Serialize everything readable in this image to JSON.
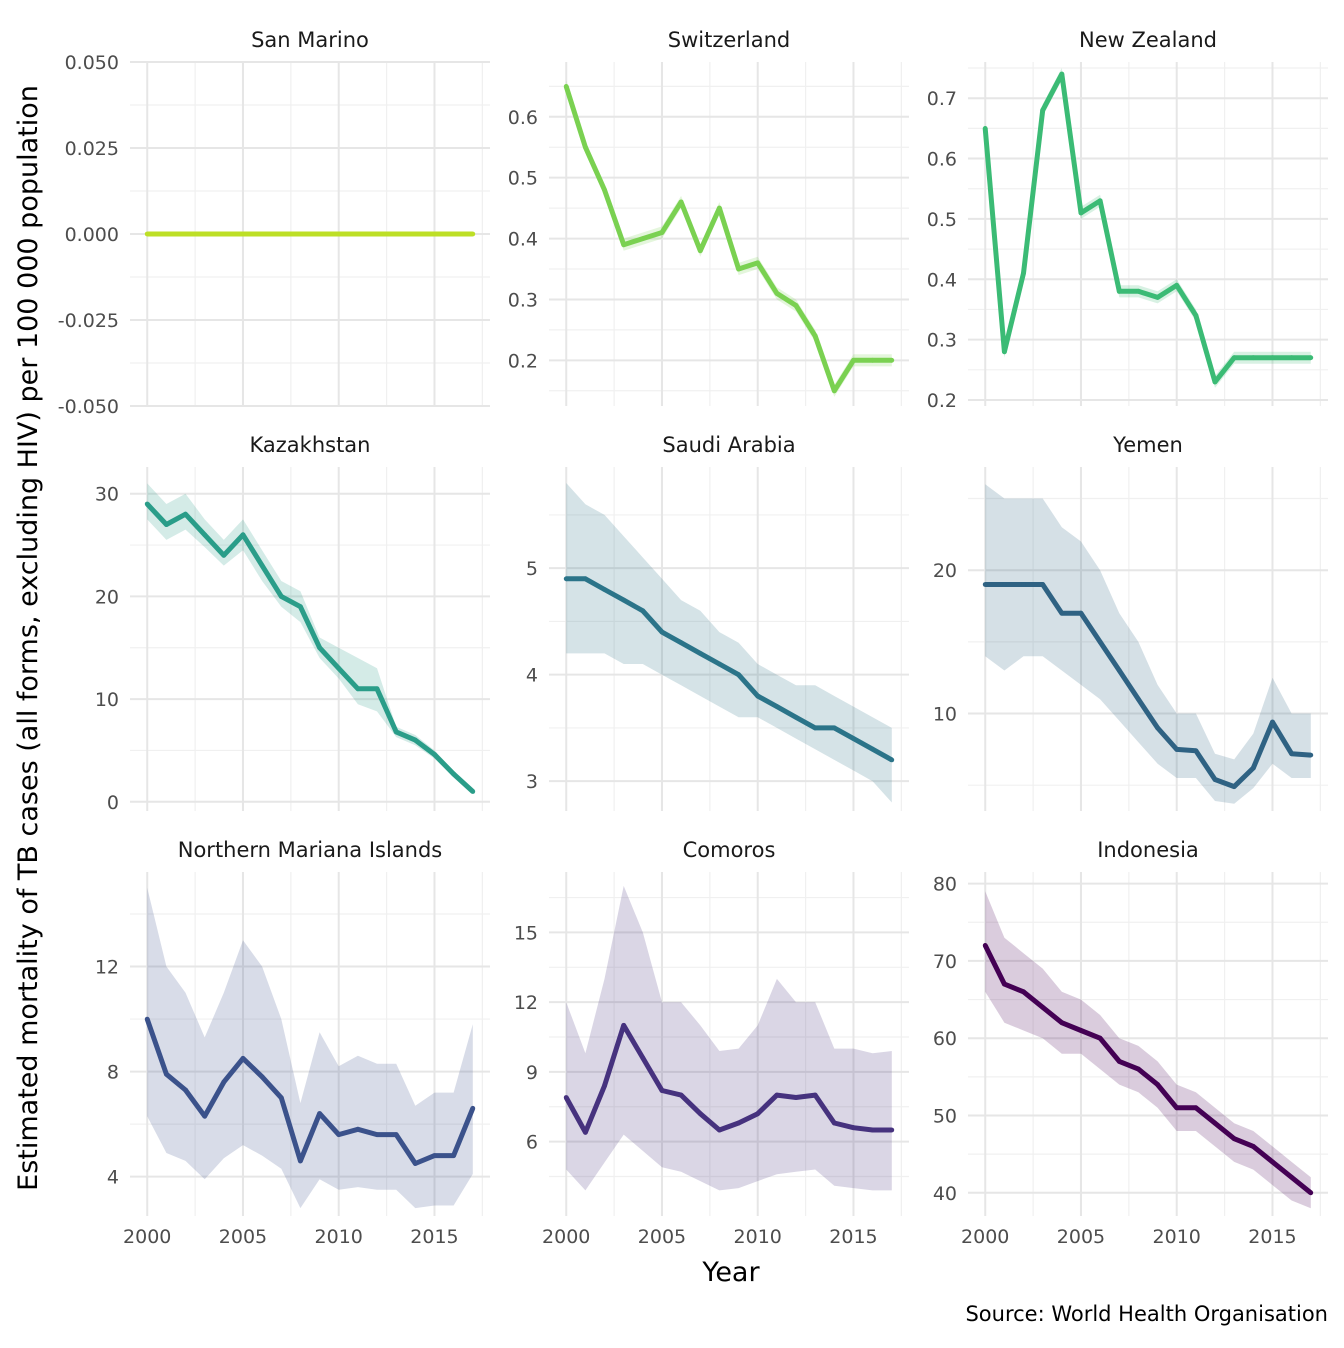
{
  "chart_data": {
    "type": "line",
    "layout": "3x3 small multiples, free y scales, shaded uncertainty band around each line",
    "xlabel": "Year",
    "ylabel": "Estimated mortality of TB cases (all forms, excluding HIV) per 100 000 population",
    "caption": "Source: World Health Organisation",
    "x_ticks": [
      "2000",
      "2005",
      "2010",
      "2015"
    ],
    "x": [
      2000,
      2001,
      2002,
      2003,
      2004,
      2005,
      2006,
      2007,
      2008,
      2009,
      2010,
      2011,
      2012,
      2013,
      2014,
      2015,
      2016,
      2017
    ],
    "xlim": [
      1999.1,
      2017.9
    ],
    "grid": true,
    "legend": "none",
    "panels": [
      {
        "name": "San Marino",
        "color": "#bddf26",
        "ylim": [
          -0.05,
          0.05
        ],
        "y_ticks": [
          -0.05,
          -0.025,
          0,
          0.025,
          0.05
        ],
        "y_tick_labels": [
          "-0.050",
          "-0.025",
          "0.000",
          "0.025",
          "0.050"
        ],
        "values": [
          0,
          0,
          0,
          0,
          0,
          0,
          0,
          0,
          0,
          0,
          0,
          0,
          0,
          0,
          0,
          0,
          0,
          0
        ],
        "lower": [
          0,
          0,
          0,
          0,
          0,
          0,
          0,
          0,
          0,
          0,
          0,
          0,
          0,
          0,
          0,
          0,
          0,
          0
        ],
        "upper": [
          0,
          0,
          0,
          0,
          0,
          0,
          0,
          0,
          0,
          0,
          0,
          0,
          0,
          0,
          0,
          0,
          0,
          0
        ]
      },
      {
        "name": "Switzerland",
        "color": "#7ad151",
        "ylim": [
          0.125,
          0.69
        ],
        "y_ticks": [
          0.2,
          0.3,
          0.4,
          0.5,
          0.6
        ],
        "y_tick_labels": [
          "0.2",
          "0.3",
          "0.4",
          "0.5",
          "0.6"
        ],
        "values": [
          0.65,
          0.55,
          0.48,
          0.39,
          0.4,
          0.41,
          0.46,
          0.38,
          0.45,
          0.35,
          0.36,
          0.31,
          0.29,
          0.24,
          0.15,
          0.2,
          0.2,
          0.2
        ],
        "lower": [
          0.64,
          0.54,
          0.47,
          0.38,
          0.39,
          0.4,
          0.45,
          0.37,
          0.44,
          0.34,
          0.35,
          0.3,
          0.28,
          0.23,
          0.14,
          0.19,
          0.19,
          0.19
        ],
        "upper": [
          0.66,
          0.56,
          0.49,
          0.4,
          0.41,
          0.42,
          0.47,
          0.39,
          0.46,
          0.36,
          0.37,
          0.32,
          0.3,
          0.25,
          0.16,
          0.21,
          0.21,
          0.21
        ]
      },
      {
        "name": "New Zealand",
        "color": "#3bbb75",
        "ylim": [
          0.19,
          0.76
        ],
        "y_ticks": [
          0.2,
          0.3,
          0.4,
          0.5,
          0.6,
          0.7
        ],
        "y_tick_labels": [
          "0.2",
          "0.3",
          "0.4",
          "0.5",
          "0.6",
          "0.7"
        ],
        "values": [
          0.65,
          0.28,
          0.41,
          0.68,
          0.74,
          0.51,
          0.53,
          0.38,
          0.38,
          0.37,
          0.39,
          0.34,
          0.23,
          0.27,
          0.27,
          0.27,
          0.27,
          0.27
        ],
        "lower": [
          0.64,
          0.27,
          0.4,
          0.67,
          0.73,
          0.5,
          0.52,
          0.37,
          0.37,
          0.36,
          0.38,
          0.33,
          0.22,
          0.26,
          0.26,
          0.26,
          0.26,
          0.26
        ],
        "upper": [
          0.66,
          0.29,
          0.42,
          0.69,
          0.75,
          0.52,
          0.54,
          0.39,
          0.39,
          0.38,
          0.4,
          0.35,
          0.24,
          0.28,
          0.28,
          0.28,
          0.28,
          0.28
        ]
      },
      {
        "name": "Kazakhstan",
        "color": "#2a9d89",
        "ylim": [
          -0.9,
          32.6
        ],
        "y_ticks": [
          0,
          10,
          20,
          30
        ],
        "y_tick_labels": [
          "0",
          "10",
          "20",
          "30"
        ],
        "values": [
          29,
          27,
          28,
          26,
          24,
          26,
          23,
          20,
          19,
          15,
          13,
          11,
          11,
          6.8,
          6,
          4.6,
          2.7,
          1.0
        ],
        "lower": [
          27.5,
          25.5,
          26.5,
          24.8,
          23,
          24.5,
          21.5,
          19,
          17.5,
          14,
          12,
          9.5,
          8.8,
          6.3,
          5.5,
          4.2,
          2.4,
          0.8
        ],
        "upper": [
          31,
          29,
          30,
          27.5,
          25.5,
          27.5,
          24.5,
          21.5,
          20.5,
          16,
          15,
          14,
          13,
          7.3,
          6.5,
          5.0,
          3.0,
          1.2
        ],
        "cap_lower": -0.9
      },
      {
        "name": "Saudi Arabia",
        "color": "#2b7489",
        "ylim": [
          2.72,
          5.95
        ],
        "y_ticks": [
          3,
          4,
          5
        ],
        "y_tick_labels": [
          "3",
          "4",
          "5"
        ],
        "values": [
          4.9,
          4.9,
          4.8,
          4.7,
          4.6,
          4.4,
          4.3,
          4.2,
          4.1,
          4.0,
          3.8,
          3.7,
          3.6,
          3.5,
          3.5,
          3.4,
          3.3,
          3.2
        ],
        "lower": [
          4.2,
          4.2,
          4.2,
          4.1,
          4.1,
          4.0,
          3.9,
          3.8,
          3.7,
          3.6,
          3.6,
          3.5,
          3.4,
          3.3,
          3.2,
          3.1,
          3.0,
          2.8
        ],
        "upper": [
          5.8,
          5.6,
          5.5,
          5.3,
          5.1,
          4.9,
          4.7,
          4.6,
          4.4,
          4.3,
          4.1,
          4.0,
          3.9,
          3.9,
          3.8,
          3.7,
          3.6,
          3.5
        ]
      },
      {
        "name": "Yemen",
        "color": "#2f6283",
        "ylim": [
          3.2,
          27.2
        ],
        "y_ticks": [
          10,
          20
        ],
        "y_tick_labels": [
          "10",
          "20"
        ],
        "values": [
          19,
          19,
          19,
          19,
          17,
          17,
          15,
          13,
          11,
          9,
          7.5,
          7.4,
          5.4,
          4.9,
          6.2,
          9.4,
          7.2,
          7.1
        ],
        "lower": [
          14,
          13,
          14,
          14,
          13,
          12,
          11,
          9.5,
          8,
          6.5,
          5.5,
          5.5,
          3.9,
          3.7,
          4.8,
          6.5,
          5.5,
          5.5
        ],
        "upper": [
          26,
          25,
          25,
          25,
          23,
          22,
          20,
          17,
          15,
          12,
          10,
          10,
          7.2,
          6.8,
          8.6,
          12.5,
          10,
          10
        ]
      },
      {
        "name": "Northern Mariana Islands",
        "color": "#3b528b",
        "ylim": [
          2.5,
          15.6
        ],
        "y_ticks": [
          4,
          8,
          12
        ],
        "y_tick_labels": [
          "4",
          "8",
          "12"
        ],
        "values": [
          10,
          7.9,
          7.3,
          6.3,
          7.6,
          8.5,
          7.8,
          7.0,
          4.6,
          6.4,
          5.6,
          5.8,
          5.6,
          5.6,
          4.5,
          4.8,
          4.8,
          6.6
        ],
        "lower": [
          6.3,
          4.9,
          4.6,
          3.9,
          4.7,
          5.2,
          4.8,
          4.3,
          2.8,
          3.9,
          3.5,
          3.6,
          3.5,
          3.5,
          2.8,
          2.9,
          2.9,
          4.1
        ],
        "upper": [
          15,
          12,
          11,
          9.3,
          11,
          13,
          12,
          10,
          6.8,
          9.5,
          8.2,
          8.6,
          8.3,
          8.3,
          6.7,
          7.2,
          7.2,
          9.8
        ],
        "cap_upper": 15.6
      },
      {
        "name": "Comoros",
        "color": "#46327e",
        "ylim": [
          2.8,
          17.6
        ],
        "y_ticks": [
          6,
          9,
          12,
          15
        ],
        "y_tick_labels": [
          "6",
          "9",
          "12",
          "15"
        ],
        "values": [
          7.9,
          6.4,
          8.4,
          11,
          9.6,
          8.2,
          8,
          7.2,
          6.5,
          6.8,
          7.2,
          8,
          7.9,
          8,
          6.8,
          6.6,
          6.5,
          6.5
        ],
        "lower": [
          4.8,
          3.9,
          5.1,
          6.3,
          5.6,
          4.9,
          4.7,
          4.3,
          3.9,
          4,
          4.3,
          4.6,
          4.7,
          4.8,
          4.1,
          4,
          3.9,
          3.9
        ],
        "upper": [
          12,
          9.8,
          13,
          17,
          15,
          12,
          12,
          11,
          9.9,
          10,
          11,
          13,
          12,
          12,
          10,
          10,
          9.8,
          9.9
        ]
      },
      {
        "name": "Indonesia",
        "color": "#440154",
        "ylim": [
          37,
          81.5
        ],
        "y_ticks": [
          40,
          50,
          60,
          70,
          80
        ],
        "y_tick_labels": [
          "40",
          "50",
          "60",
          "70",
          "80"
        ],
        "values": [
          72,
          67,
          66,
          64,
          62,
          61,
          60,
          57,
          56,
          54,
          51,
          51,
          49,
          47,
          46,
          44,
          42,
          40
        ],
        "lower": [
          66,
          62,
          61,
          60,
          58,
          58,
          56,
          54,
          53,
          51,
          48,
          48,
          46,
          44,
          43,
          41,
          39,
          38
        ],
        "upper": [
          79,
          73,
          71,
          69,
          66,
          65,
          63,
          60,
          59,
          57,
          54,
          53,
          51,
          49,
          48,
          46,
          44,
          42
        ]
      }
    ]
  }
}
